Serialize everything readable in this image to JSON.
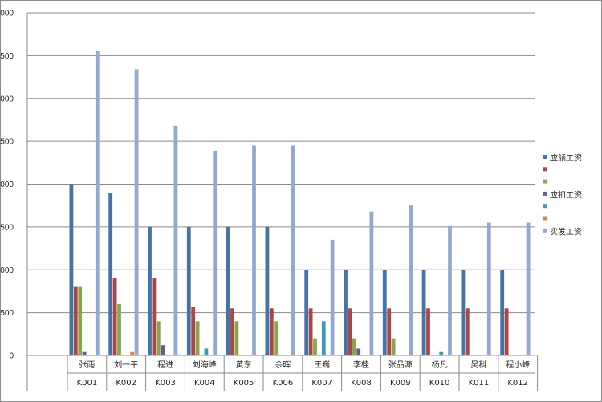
{
  "chart_data": {
    "type": "bar",
    "title": "",
    "xlabel": "",
    "ylabel": "",
    "ylim": [
      0,
      4000
    ],
    "ytick_step": 500,
    "grid": true,
    "legend_position": "right",
    "names": [
      "张雨",
      "刘一平",
      "程进",
      "刘海峰",
      "黄东",
      "余晖",
      "王巍",
      "李桂",
      "张品源",
      "杨凡",
      "吴科",
      "程小峰"
    ],
    "ids": [
      "K001",
      "K002",
      "K003",
      "K004",
      "K005",
      "K006",
      "K007",
      "K008",
      "K009",
      "K010",
      "K011",
      "K012"
    ],
    "series": [
      {
        "name": "应领工资",
        "color": "#4573A7",
        "values": [
          2000,
          1900,
          1500,
          1500,
          1500,
          1500,
          1000,
          1000,
          1000,
          1000,
          1000,
          1000
        ]
      },
      {
        "name": "",
        "color": "#AA4644",
        "values": [
          800,
          900,
          900,
          570,
          550,
          550,
          550,
          550,
          550,
          550,
          550,
          550
        ]
      },
      {
        "name": "",
        "color": "#89A54E",
        "values": [
          800,
          600,
          400,
          400,
          400,
          400,
          200,
          200,
          200,
          0,
          0,
          0
        ]
      },
      {
        "name": "应扣工资",
        "color": "#71588F",
        "values": [
          40,
          0,
          120,
          0,
          0,
          0,
          0,
          80,
          0,
          0,
          0,
          0
        ]
      },
      {
        "name": "",
        "color": "#4298AF",
        "values": [
          0,
          0,
          0,
          80,
          0,
          0,
          400,
          0,
          0,
          40,
          0,
          0
        ]
      },
      {
        "name": "",
        "color": "#DB843D",
        "values": [
          0,
          40,
          0,
          0,
          0,
          0,
          0,
          0,
          0,
          0,
          0,
          0
        ]
      },
      {
        "name": "实发工资",
        "color": "#93A9CF",
        "values": [
          3560,
          3340,
          2680,
          2390,
          2450,
          2450,
          1350,
          1680,
          1750,
          1510,
          1550,
          1550
        ]
      }
    ]
  }
}
